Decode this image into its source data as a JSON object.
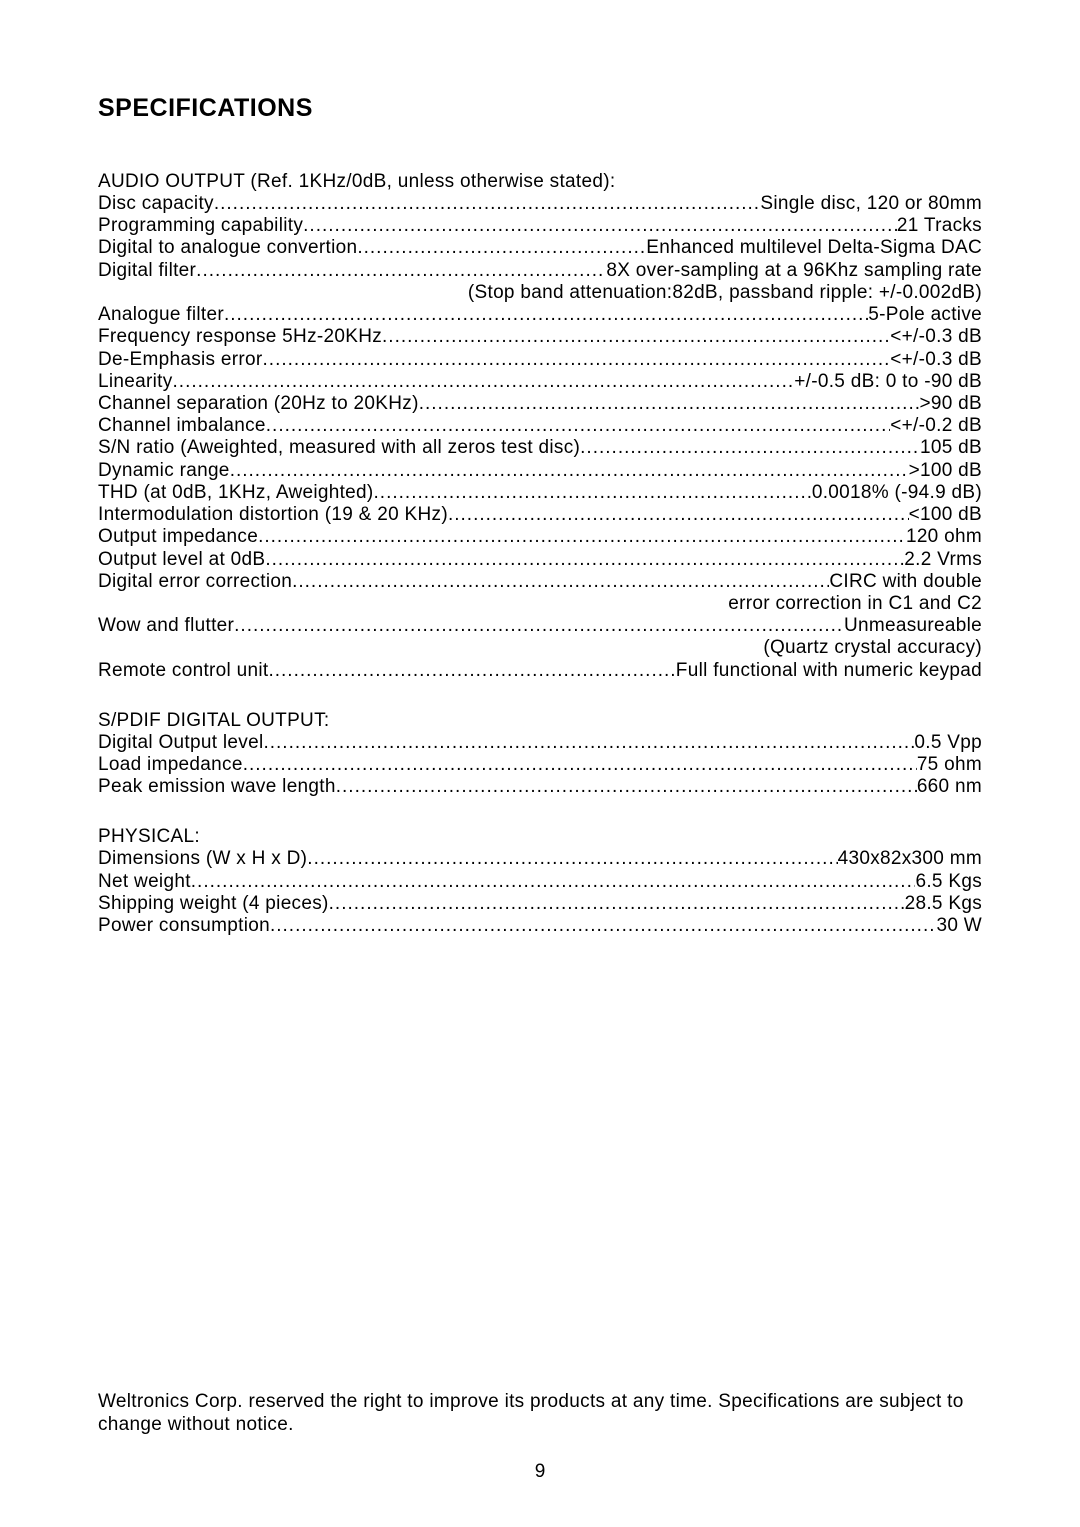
{
  "title": "SPECIFICATIONS",
  "sections": [
    {
      "header": "AUDIO OUTPUT (Ref. 1KHz/0dB, unless otherwise stated):",
      "rows": [
        {
          "label": "Disc capacity",
          "value": "Single disc, 120 or 80mm"
        },
        {
          "label": "Programming capability",
          "value": "21 Tracks"
        },
        {
          "label": "Digital to analogue convertion",
          "value": "Enhanced multilevel Delta-Sigma DAC"
        },
        {
          "label": "Digital filter",
          "value": "8X over-sampling at a 96Khz sampling rate",
          "continuation": "(Stop band attenuation:82dB, passband ripple: +/-0.002dB)"
        },
        {
          "label": "Analogue filter",
          "value": "5-Pole active"
        },
        {
          "label": "Frequency response 5Hz-20KHz",
          "value": "<+/-0.3 dB"
        },
        {
          "label": "De-Emphasis error",
          "value": "<+/-0.3 dB"
        },
        {
          "label": "Linearity",
          "value": "+/-0.5 dB: 0 to -90 dB"
        },
        {
          "label": "Channel separation (20Hz to 20KHz)",
          "value": ">90 dB"
        },
        {
          "label": "Channel imbalance",
          "value": "<+/-0.2 dB"
        },
        {
          "label": "S/N ratio (Aweighted, measured with all zeros test disc)",
          "value": "105 dB"
        },
        {
          "label": "Dynamic range",
          "value": ">100 dB"
        },
        {
          "label": "THD (at 0dB, 1KHz, Aweighted)",
          "value": "0.0018% (-94.9 dB)"
        },
        {
          "label": "Intermodulation distortion (19 & 20 KHz)",
          "value": "<100 dB"
        },
        {
          "label": "Output impedance",
          "value": "120 ohm"
        },
        {
          "label": "Output level at 0dB",
          "value": "2.2 Vrms"
        },
        {
          "label": "Digital error correction",
          "value": "CIRC with double",
          "continuation": "error correction in C1 and C2"
        },
        {
          "label": "Wow and flutter",
          "value": "Unmeasureable",
          "continuation": "(Quartz crystal accuracy)"
        },
        {
          "label": "Remote control unit",
          "value": "Full functional with numeric keypad"
        }
      ]
    },
    {
      "header": "S/PDIF DIGITAL OUTPUT:",
      "rows": [
        {
          "label": "Digital  Output  level",
          "value": "0.5  Vpp"
        },
        {
          "label": "Load impedance",
          "value": "75 ohm"
        },
        {
          "label": "Peak emission wave length",
          "value": "660 nm"
        }
      ]
    },
    {
      "header": "PHYSICAL:",
      "rows": [
        {
          "label": "Dimensions (W x H x D)",
          "value": "430x82x300 mm"
        },
        {
          "label": "Net weight",
          "value": "6.5 Kgs"
        },
        {
          "label": "Shipping weight (4 pieces)",
          "value": "28.5 Kgs"
        },
        {
          "label": "Power consumption",
          "value": "30 W"
        }
      ]
    }
  ],
  "disclaimer": "Weltronics Corp. reserved the right to improve its products at any time. Specifications are subject to change without notice.",
  "pageNumber": "9"
}
